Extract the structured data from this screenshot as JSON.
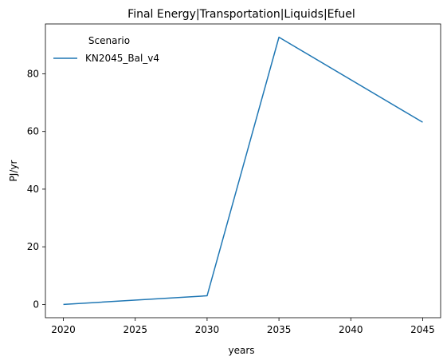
{
  "chart_data": {
    "type": "line",
    "title": "Final Energy|Transportation|Liquids|Efuel",
    "xlabel": "years",
    "ylabel": "PJ/yr",
    "x": [
      2020,
      2030,
      2035,
      2045
    ],
    "series": [
      {
        "name": "KN2045_Bal_v4",
        "color": "#1f77b4",
        "values": [
          0.0,
          3.0,
          92.7,
          63.2
        ]
      }
    ],
    "xticks": [
      2020,
      2025,
      2030,
      2035,
      2040,
      2045
    ],
    "yticks": [
      0,
      20,
      40,
      60,
      80
    ],
    "xlim": [
      2018.75,
      2046.25
    ],
    "ylim": [
      -4.6,
      97.3
    ],
    "grid": false,
    "legend": {
      "title": "Scenario",
      "placement": "upper-left"
    }
  }
}
